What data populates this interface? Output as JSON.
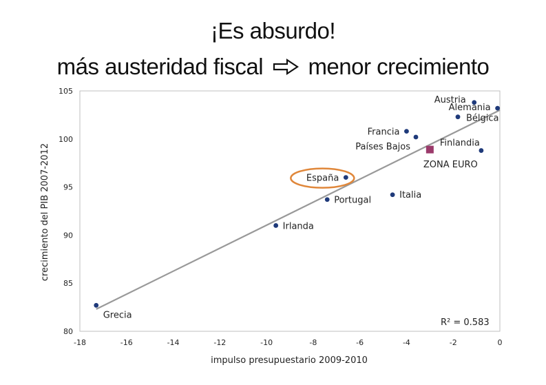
{
  "header": {
    "line1": "¡Es absurdo!",
    "line2_left": "más austeridad fiscal",
    "arrow_icon": "outline-right-arrow-icon",
    "line2_right": "menor crecimiento"
  },
  "chart_data": {
    "type": "scatter",
    "xlabel": "impulso presupuestario 2009-2010",
    "ylabel": "crecimiento del PIB 2007-2012",
    "xlim": [
      -18,
      0
    ],
    "ylim": [
      80,
      105
    ],
    "xticks": [
      -18,
      -16,
      -14,
      -12,
      -10,
      -8,
      -6,
      -4,
      -2,
      0
    ],
    "yticks": [
      80,
      85,
      90,
      95,
      100,
      105
    ],
    "grid": false,
    "points": [
      {
        "label": "Grecia",
        "x": -17.3,
        "y": 82.7
      },
      {
        "label": "Irlanda",
        "x": -9.6,
        "y": 91.0
      },
      {
        "label": "Portugal",
        "x": -7.4,
        "y": 93.7
      },
      {
        "label": "España",
        "x": -6.6,
        "y": 96.0,
        "highlight": true
      },
      {
        "label": "Italia",
        "x": -4.6,
        "y": 94.2
      },
      {
        "label": "Francia",
        "x": -4.0,
        "y": 100.8
      },
      {
        "label": "Países Bajos",
        "x": -3.6,
        "y": 100.2
      },
      {
        "label": "Bélgica",
        "x": -1.8,
        "y": 102.3
      },
      {
        "label": "Austria",
        "x": -1.1,
        "y": 103.8
      },
      {
        "label": "Alemania",
        "x": -0.1,
        "y": 103.2
      },
      {
        "label": "Finlandia",
        "x": -0.8,
        "y": 98.8
      }
    ],
    "aggregate": {
      "label": "ZONA EURO",
      "x": -3.0,
      "y": 98.9,
      "color": "#9b3a6b"
    },
    "trendline": {
      "x": [
        -17.3,
        0.0
      ],
      "y": [
        82.3,
        103.0
      ],
      "color": "#999999"
    },
    "annotation": "R² = 0.583",
    "colors": {
      "point": "#1f3a7a",
      "highlight_ring": "#e0873a"
    }
  }
}
